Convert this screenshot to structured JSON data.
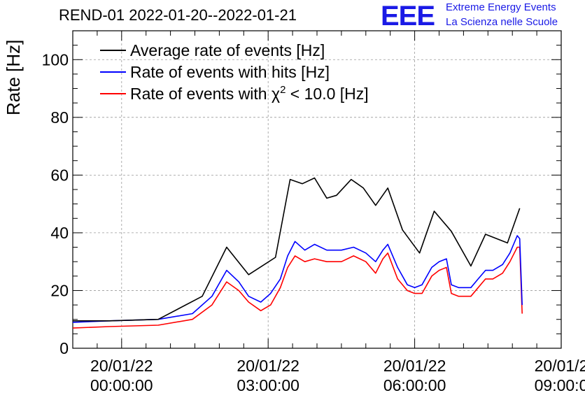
{
  "header": {
    "title": "REND-01 2022-01-20--2022-01-21",
    "logo_mark": "EEE",
    "logo_line1": "Extreme Energy Events",
    "logo_line2": "La Scienza nelle Scuole",
    "logo_color": "#1a1ae6"
  },
  "chart_data": {
    "type": "line",
    "ylabel": "Rate [Hz]",
    "xlabel": "",
    "ylim": [
      0,
      110
    ],
    "xlim": [
      -1,
      9
    ],
    "x_unit": "hours since 20/01/22 00:00:00",
    "yticks": [
      0,
      20,
      40,
      60,
      80,
      100
    ],
    "xticks": [
      {
        "x": 0,
        "date": "20/01/22",
        "time": "00:00:00"
      },
      {
        "x": 3,
        "date": "20/01/22",
        "time": "03:00:00"
      },
      {
        "x": 6,
        "date": "20/01/22",
        "time": "06:00:00"
      },
      {
        "x": 9,
        "date": "20/01/2",
        "time": "09:00:0"
      }
    ],
    "grid": true,
    "legend_placement": "top-left",
    "series": [
      {
        "name": "Average rate of events [Hz]",
        "color": "#000000",
        "x": [
          -1.0,
          -0.25,
          0.75,
          1.65,
          2.15,
          2.6,
          3.15,
          3.45,
          3.7,
          3.95,
          4.2,
          4.4,
          4.7,
          4.95,
          5.2,
          5.45,
          5.75,
          6.1,
          6.4,
          6.75,
          7.15,
          7.45,
          7.9,
          8.15
        ],
        "y": [
          9.5,
          9.5,
          10,
          18,
          35,
          25.5,
          31.5,
          58.5,
          57,
          59,
          52,
          53,
          58.5,
          55.5,
          49.5,
          55.5,
          41,
          33,
          47.5,
          40.5,
          28.5,
          39.5,
          36.5,
          48.5
        ]
      },
      {
        "name": "Rate of events with hits [Hz]",
        "color": "#0000ff",
        "x": [
          -1.0,
          -0.25,
          0.75,
          1.45,
          1.85,
          2.15,
          2.4,
          2.6,
          2.85,
          3.05,
          3.25,
          3.4,
          3.55,
          3.75,
          3.95,
          4.2,
          4.5,
          4.75,
          5.0,
          5.2,
          5.35,
          5.45,
          5.65,
          5.85,
          6.0,
          6.15,
          6.35,
          6.5,
          6.65,
          6.75,
          6.9,
          7.15,
          7.3,
          7.45,
          7.6,
          7.8,
          7.95,
          8.1,
          8.15,
          8.2
        ],
        "y": [
          9,
          9.5,
          10,
          12,
          18,
          27,
          23,
          18,
          16,
          19,
          24,
          32,
          37,
          34,
          36,
          34,
          34,
          35,
          33,
          30,
          34,
          36,
          28,
          22,
          21,
          22,
          28,
          30,
          31,
          22,
          21,
          21,
          24,
          27,
          27,
          29,
          33,
          39,
          38,
          15
        ]
      },
      {
        "name": "Rate of events with χ² < 10.0 [Hz]",
        "color": "#ff0000",
        "x": [
          -1.0,
          -0.25,
          0.75,
          1.45,
          1.85,
          2.15,
          2.4,
          2.6,
          2.85,
          3.05,
          3.25,
          3.4,
          3.55,
          3.75,
          3.95,
          4.2,
          4.5,
          4.75,
          5.0,
          5.2,
          5.35,
          5.45,
          5.65,
          5.85,
          6.0,
          6.15,
          6.35,
          6.5,
          6.65,
          6.75,
          6.9,
          7.15,
          7.3,
          7.45,
          7.6,
          7.8,
          7.95,
          8.1,
          8.15,
          8.2
        ],
        "y": [
          7,
          7.5,
          8,
          10,
          15,
          23,
          20,
          16,
          13,
          15,
          21,
          28,
          32,
          30,
          31,
          30,
          30,
          32,
          30,
          26,
          31,
          33,
          24,
          20,
          19,
          19,
          25,
          27,
          28,
          19,
          18,
          18,
          21,
          24,
          24,
          26,
          30,
          35,
          35,
          12
        ]
      }
    ],
    "legend_symbols": {
      "superscript": "2"
    }
  }
}
